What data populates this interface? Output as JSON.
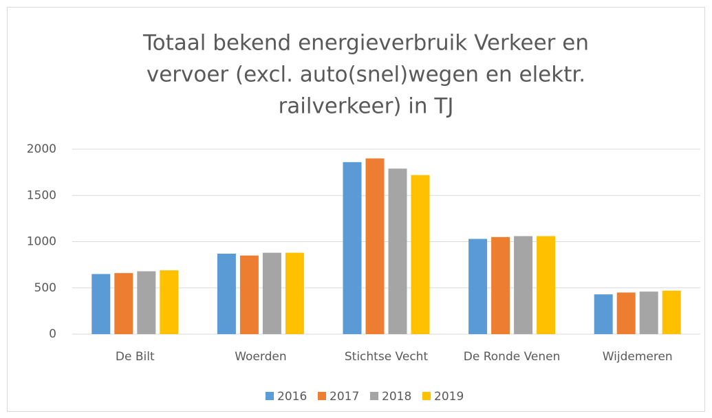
{
  "chart_data": {
    "type": "bar",
    "title": [
      "Totaal bekend energieverbruik Verkeer en",
      "vervoer (excl. auto(snel)wegen en elektr.",
      "railverkeer) in TJ"
    ],
    "categories": [
      "De Bilt",
      "Woerden",
      "Stichtse Vecht",
      "De Ronde Venen",
      "Wijdemeren"
    ],
    "series": [
      {
        "name": "2016",
        "color": "#5b9bd5",
        "values": [
          650,
          870,
          1860,
          1030,
          430
        ]
      },
      {
        "name": "2017",
        "color": "#ed7d31",
        "values": [
          660,
          850,
          1900,
          1050,
          450
        ]
      },
      {
        "name": "2018",
        "color": "#a5a5a5",
        "values": [
          680,
          880,
          1790,
          1060,
          460
        ]
      },
      {
        "name": "2019",
        "color": "#ffc000",
        "values": [
          690,
          880,
          1720,
          1060,
          470
        ]
      }
    ],
    "ylim": [
      0,
      2000
    ],
    "yticks": [
      0,
      500,
      1000,
      1500,
      2000
    ],
    "grid": true,
    "legend": "bottom"
  }
}
